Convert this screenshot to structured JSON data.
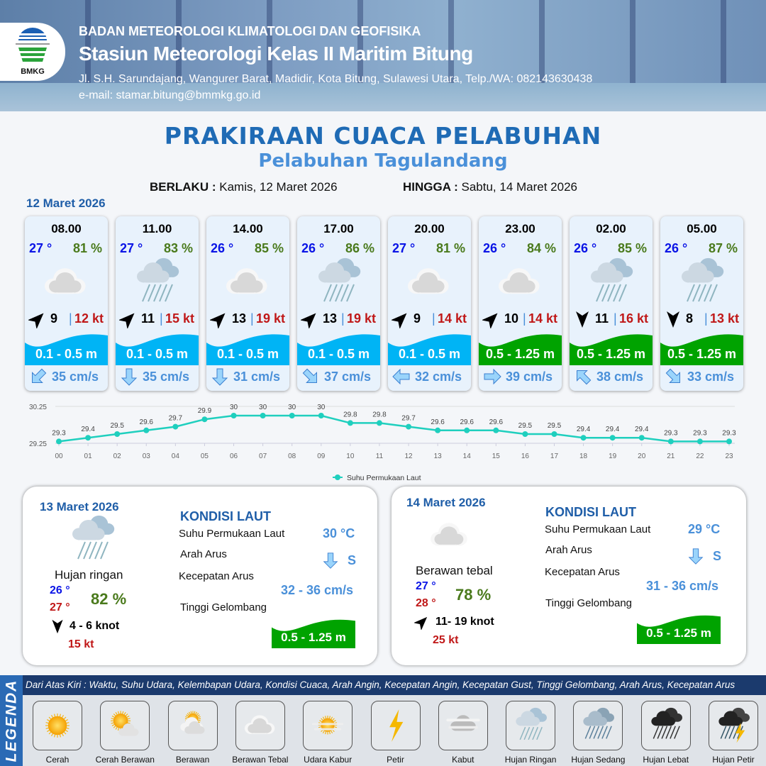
{
  "header": {
    "org": "BADAN METEOROLOGI KLIMATOLOGI DAN GEOFISIKA",
    "station": "Stasiun Meteorologi Kelas II Maritim Bitung",
    "address": "Jl. S.H. Sarundajang, Wangurer Barat, Madidir, Kota Bitung, Sulawesi Utara, Telp./WA: 082143630438",
    "email": "e-mail: stamar.bitung@bmmkg.go.id",
    "logo_text": "BMKG"
  },
  "title": "PRAKIRAAN CUACA PELABUHAN",
  "subtitle": "Pelabuhan Tagulandang",
  "validity": {
    "from_label": "BERLAKU :",
    "from": "Kamis, 12 Maret 2026",
    "to_label": "HINGGA :",
    "to": "Sabtu, 14 Maret 2026"
  },
  "day1": "12 Maret 2026",
  "colors": {
    "wave_low": "#00b4f5",
    "wave_mid": "#00a300",
    "temp": "#0a14e6",
    "humidity": "#4a7a1c",
    "gust": "#c01818",
    "current": "#4a90d9",
    "chart_line": "#1fcfbe"
  },
  "forecast": [
    {
      "time": "08.00",
      "temp": "27 °",
      "hum": "81 %",
      "weather": "berawan-tebal",
      "wind_dir": "NE",
      "wind": "9",
      "gust": "12 kt",
      "wave": "0.1 - 0.5 m",
      "wave_level": "low",
      "cur_dir": "SW",
      "cur": "35 cm/s"
    },
    {
      "time": "11.00",
      "temp": "27 °",
      "hum": "83 %",
      "weather": "hujan-ringan",
      "wind_dir": "NE",
      "wind": "11",
      "gust": "15 kt",
      "wave": "0.1 - 0.5 m",
      "wave_level": "low",
      "cur_dir": "S",
      "cur": "35 cm/s"
    },
    {
      "time": "14.00",
      "temp": "26 °",
      "hum": "85 %",
      "weather": "berawan-tebal",
      "wind_dir": "NE",
      "wind": "13",
      "gust": "19 kt",
      "wave": "0.1 - 0.5 m",
      "wave_level": "low",
      "cur_dir": "S",
      "cur": "31 cm/s"
    },
    {
      "time": "17.00",
      "temp": "26 °",
      "hum": "86 %",
      "weather": "hujan-ringan",
      "wind_dir": "NE",
      "wind": "13",
      "gust": "19 kt",
      "wave": "0.1 - 0.5 m",
      "wave_level": "low",
      "cur_dir": "SE",
      "cur": "37 cm/s"
    },
    {
      "time": "20.00",
      "temp": "27 °",
      "hum": "81 %",
      "weather": "berawan-tebal",
      "wind_dir": "NE",
      "wind": "9",
      "gust": "14 kt",
      "wave": "0.1 - 0.5 m",
      "wave_level": "low",
      "cur_dir": "W",
      "cur": "32 cm/s"
    },
    {
      "time": "23.00",
      "temp": "26 °",
      "hum": "84 %",
      "weather": "berawan-tebal",
      "wind_dir": "NE",
      "wind": "10",
      "gust": "14 kt",
      "wave": "0.5 - 1.25 m",
      "wave_level": "mid",
      "cur_dir": "E",
      "cur": "39 cm/s"
    },
    {
      "time": "02.00",
      "temp": "26 °",
      "hum": "85 %",
      "weather": "hujan-ringan",
      "wind_dir": "S",
      "wind": "11",
      "gust": "16 kt",
      "wave": "0.5 - 1.25 m",
      "wave_level": "mid",
      "cur_dir": "NW",
      "cur": "38 cm/s"
    },
    {
      "time": "05.00",
      "temp": "26 °",
      "hum": "87 %",
      "weather": "hujan-ringan",
      "wind_dir": "S",
      "wind": "8",
      "gust": "13 kt",
      "wave": "0.5 - 1.25 m",
      "wave_level": "mid",
      "cur_dir": "SE",
      "cur": "33 cm/s"
    }
  ],
  "chart_data": {
    "type": "line",
    "x": [
      "00",
      "01",
      "02",
      "03",
      "04",
      "05",
      "06",
      "07",
      "08",
      "09",
      "10",
      "11",
      "12",
      "13",
      "14",
      "15",
      "16",
      "17",
      "18",
      "19",
      "20",
      "21",
      "22",
      "23"
    ],
    "series": [
      {
        "name": "Suhu Permukaan Laut",
        "values": [
          29.3,
          29.4,
          29.5,
          29.6,
          29.7,
          29.9,
          30.0,
          30.0,
          30.0,
          30.0,
          29.8,
          29.8,
          29.7,
          29.6,
          29.6,
          29.6,
          29.5,
          29.5,
          29.4,
          29.4,
          29.4,
          29.3,
          29.3,
          29.3
        ]
      }
    ],
    "yticks": [
      "30.25",
      "29.25"
    ],
    "ylim": [
      29.25,
      30.25
    ],
    "legend": "bottom",
    "grid": true
  },
  "days": [
    {
      "date": "13 Maret 2026",
      "weather": "hujan-ringan",
      "weather_label": "Hujan ringan",
      "tmin": "26 °",
      "tmax": "27 °",
      "hum": "82 %",
      "wind_dir": "S",
      "wind": "4  - 6 knot",
      "gust": "15 kt",
      "kondisi": "KONDISI LAUT",
      "sst_label": "Suhu Permukaan Laut",
      "sst": "30 °C",
      "cur_dir_label": "Arah Arus",
      "cur_dir": "S",
      "cur_speed_label": "Kecepatan Arus",
      "cur_speed": "32 - 36 cm/s",
      "wave_label": "Tinggi Gelombang",
      "wave": "0.5 - 1.25 m"
    },
    {
      "date": "14 Maret 2026",
      "weather": "berawan-tebal",
      "weather_label": "Berawan tebal",
      "tmin": "27 °",
      "tmax": "28 °",
      "hum": "78 %",
      "wind_dir": "NE",
      "wind": "11- 19 knot",
      "gust": "25 kt",
      "kondisi": "KONDISI LAUT",
      "sst_label": "Suhu Permukaan Laut",
      "sst": "29 °C",
      "cur_dir_label": "Arah Arus",
      "cur_dir": "S",
      "cur_speed_label": "Kecepatan Arus",
      "cur_speed": "31 - 36 cm/s",
      "wave_label": "Tinggi Gelombang",
      "wave": "0.5 - 1.25 m"
    }
  ],
  "legend": {
    "title": "LEGENDA",
    "description": "Dari Atas Kiri : Waktu, Suhu Udara, Kelembapan Udara, Kondisi Cuaca, Arah Angin, Kecepatan Angin, Kecepatan Gust, Tinggi Gelombang, Arah Arus, Kecepatan Arus",
    "items": [
      {
        "icon": "cerah",
        "label": "Cerah"
      },
      {
        "icon": "cerah-berawan",
        "label": "Cerah Berawan"
      },
      {
        "icon": "berawan",
        "label": "Berawan"
      },
      {
        "icon": "berawan-tebal",
        "label": "Berawan Tebal"
      },
      {
        "icon": "udara-kabur",
        "label": "Udara Kabur"
      },
      {
        "icon": "petir",
        "label": "Petir"
      },
      {
        "icon": "kabut",
        "label": "Kabut"
      },
      {
        "icon": "hujan-ringan",
        "label": "Hujan Ringan"
      },
      {
        "icon": "hujan-sedang",
        "label": "Hujan Sedang"
      },
      {
        "icon": "hujan-lebat",
        "label": "Hujan Lebat"
      },
      {
        "icon": "hujan-petir",
        "label": "Hujan Petir"
      }
    ]
  }
}
